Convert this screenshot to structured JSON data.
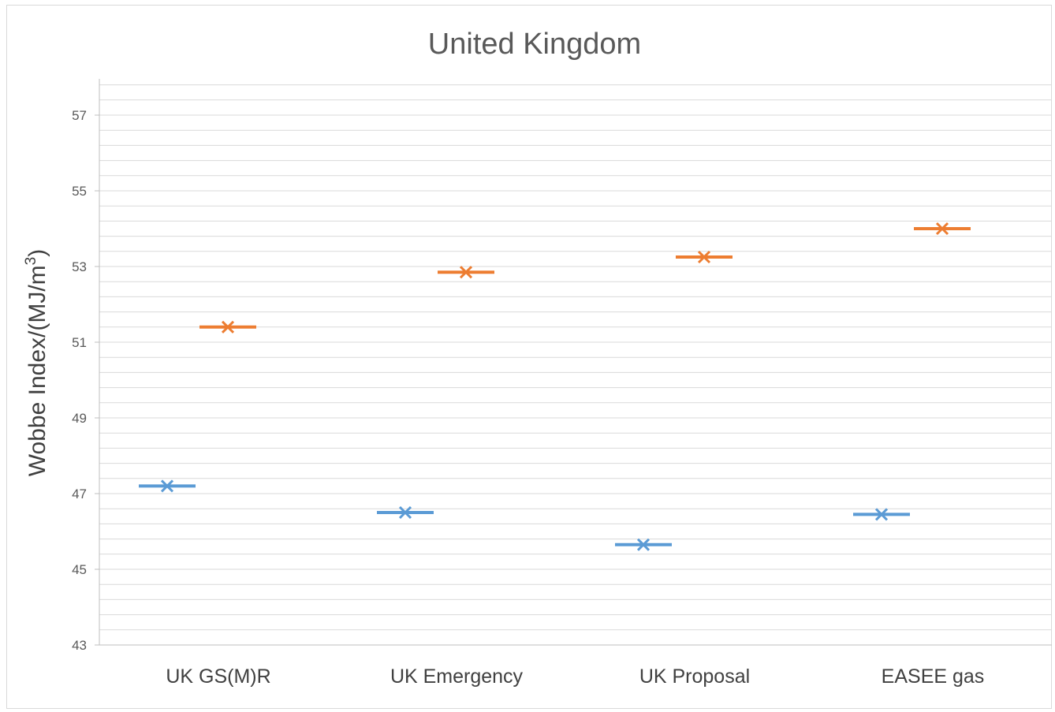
{
  "chart_data": {
    "type": "scatter",
    "title": "United Kingdom",
    "ylabel_main": "Wobbe Index/(MJ/m",
    "ylabel_sup": "3",
    "ylabel_end": ")",
    "xlabel": "",
    "categories": [
      "UK GS(M)R",
      "UK Emergency",
      "UK Proposal",
      "EASEE gas"
    ],
    "ylim": [
      43,
      58
    ],
    "yticks": [
      43,
      45,
      47,
      49,
      51,
      53,
      55,
      57
    ],
    "minor_grid_step": 0.4,
    "grid": true,
    "legend": "none",
    "series": [
      {
        "values": [
          47.2,
          46.5,
          45.65,
          46.45
        ],
        "color": "#5b9bd5",
        "marker": "x-with-dash"
      },
      {
        "values": [
          51.4,
          52.85,
          53.25,
          54.0
        ],
        "color": "#ed7d31",
        "marker": "x-with-dash"
      }
    ]
  }
}
